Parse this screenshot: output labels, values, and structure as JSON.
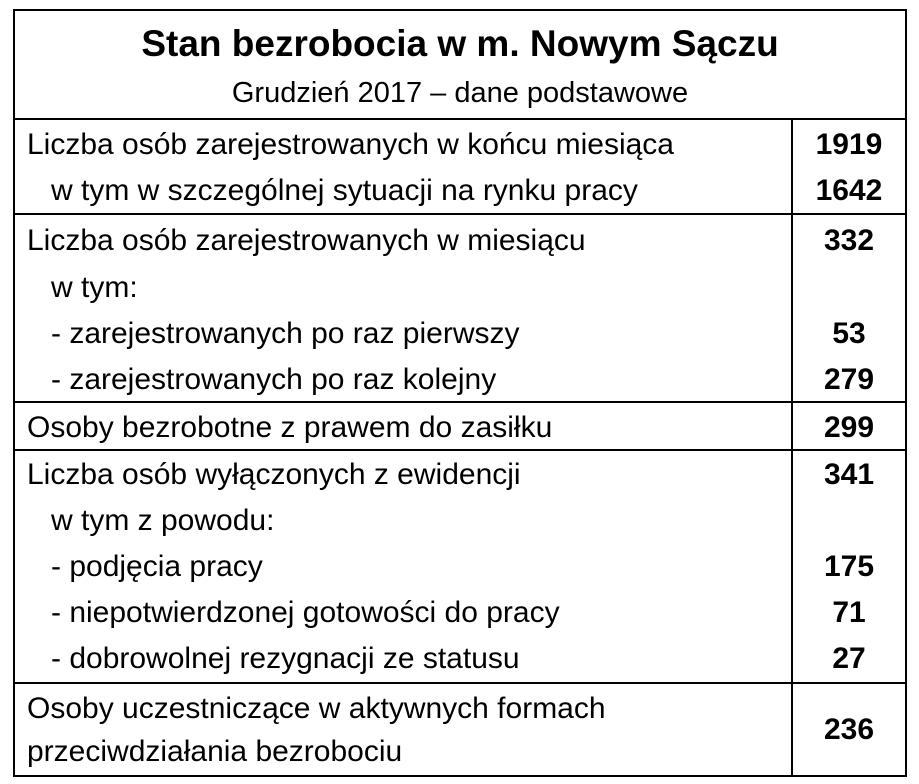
{
  "title": "Stan bezrobocia w m. Nowym Sączu",
  "subtitle": "Grudzień 2017 – dane podstawowe",
  "sections": [
    {
      "rows": [
        {
          "label": "Liczba osób zarejestrowanych w końcu miesiąca",
          "value": "1919"
        },
        {
          "label": "w tym w szczególnej sytuacji na rynku pracy",
          "value": "1642"
        }
      ]
    },
    {
      "rows": [
        {
          "label": "Liczba osób zarejestrowanych w miesiącu",
          "value": "332"
        },
        {
          "label": "w tym:",
          "value": ""
        },
        {
          "label": "- zarejestrowanych po raz pierwszy",
          "value": "53"
        },
        {
          "label": "- zarejestrowanych po raz kolejny",
          "value": "279"
        }
      ]
    },
    {
      "rows": [
        {
          "label": "Osoby bezrobotne z prawem do zasiłku",
          "value": "299"
        }
      ]
    },
    {
      "rows": [
        {
          "label": "Liczba osób wyłączonych z ewidencji",
          "value": "341"
        },
        {
          "label": "w tym z powodu:",
          "value": ""
        },
        {
          "label": "- podjęcia pracy",
          "value": "175"
        },
        {
          "label": "- niepotwierdzonej gotowości do pracy",
          "value": "71"
        },
        {
          "label": "- dobrowolnej rezygnacji ze statusu",
          "value": "27"
        }
      ]
    },
    {
      "rows": [
        {
          "label_line1": "Osoby uczestniczące w aktywnych formach",
          "label_line2": "przeciwdziałania bezrobociu",
          "value": "236"
        }
      ]
    }
  ]
}
